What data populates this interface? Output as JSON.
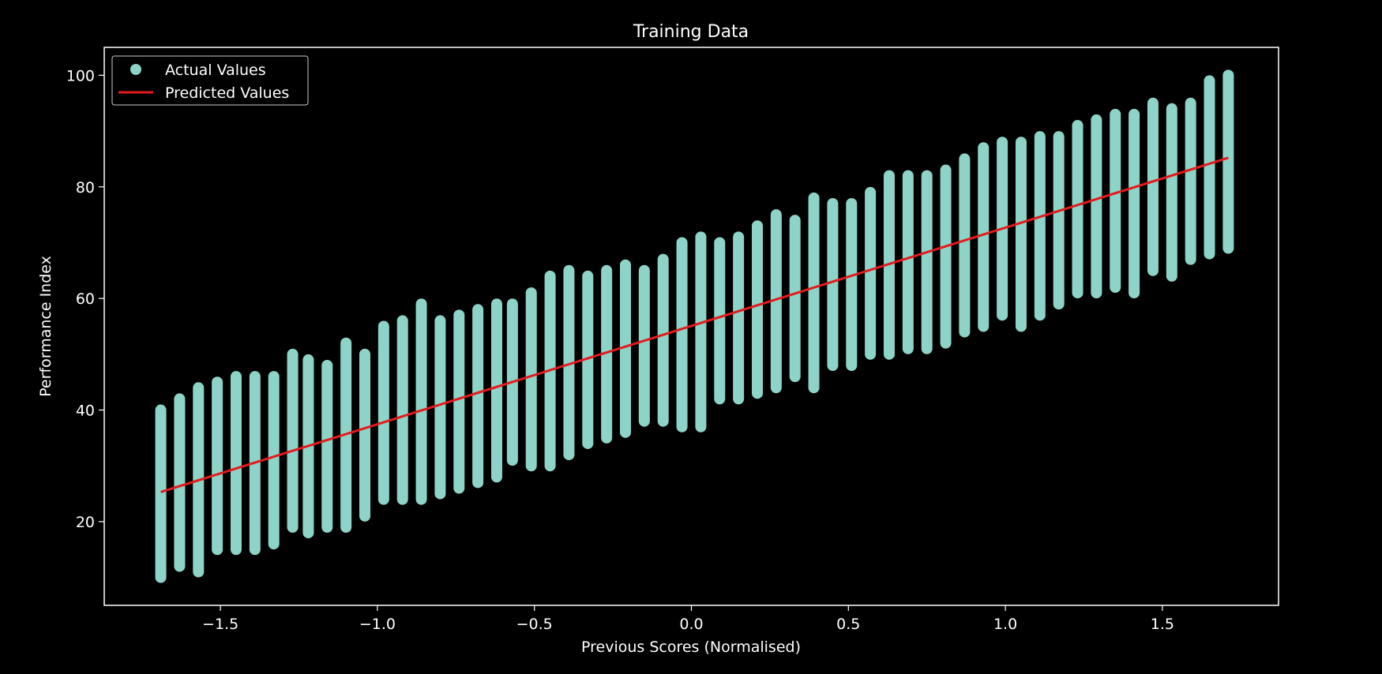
{
  "chart_data": {
    "type": "scatter",
    "title": "Training Data",
    "xlabel": "Previous Scores (Normalised)",
    "ylabel": "Performance Index",
    "xlim": [
      -1.87,
      1.87
    ],
    "ylim": [
      5,
      105
    ],
    "x_ticks": [
      -1.5,
      -1.0,
      -0.5,
      0.0,
      0.5,
      1.0,
      1.5
    ],
    "x_tick_labels": [
      "−1.5",
      "−1.0",
      "−0.5",
      "0.0",
      "0.5",
      "1.0",
      "1.5"
    ],
    "y_ticks": [
      20,
      40,
      60,
      80,
      100
    ],
    "y_tick_labels": [
      "20",
      "40",
      "60",
      "80",
      "100"
    ],
    "grid": false,
    "legend": {
      "position": "top-left",
      "entries": [
        {
          "label": "Actual Values",
          "marker": "circle",
          "color": "#8dd3c7"
        },
        {
          "label": "Predicted Values",
          "marker": "line",
          "color": "#e41a1c"
        }
      ]
    },
    "colors": {
      "background": "#000000",
      "axes": "#ffffff",
      "scatter": "#8dd3c7",
      "line": "#e41a1c"
    },
    "series": [
      {
        "name": "Actual Values",
        "kind": "scatter",
        "columns": [
          {
            "x": -1.69,
            "y": [
              10,
              40
            ]
          },
          {
            "x": -1.63,
            "y": [
              12,
              42
            ]
          },
          {
            "x": -1.57,
            "y": [
              11,
              44
            ]
          },
          {
            "x": -1.51,
            "y": [
              15,
              45
            ]
          },
          {
            "x": -1.45,
            "y": [
              15,
              46
            ]
          },
          {
            "x": -1.39,
            "y": [
              15,
              46
            ]
          },
          {
            "x": -1.33,
            "y": [
              16,
              46
            ]
          },
          {
            "x": -1.27,
            "y": [
              19,
              50
            ]
          },
          {
            "x": -1.22,
            "y": [
              18,
              49
            ]
          },
          {
            "x": -1.16,
            "y": [
              19,
              48
            ]
          },
          {
            "x": -1.1,
            "y": [
              19,
              52
            ]
          },
          {
            "x": -1.04,
            "y": [
              21,
              50
            ]
          },
          {
            "x": -0.98,
            "y": [
              24,
              55
            ]
          },
          {
            "x": -0.92,
            "y": [
              24,
              56
            ]
          },
          {
            "x": -0.86,
            "y": [
              24,
              59
            ]
          },
          {
            "x": -0.8,
            "y": [
              25,
              56
            ]
          },
          {
            "x": -0.74,
            "y": [
              26,
              57
            ]
          },
          {
            "x": -0.68,
            "y": [
              27,
              58
            ]
          },
          {
            "x": -0.62,
            "y": [
              28,
              59
            ]
          },
          {
            "x": -0.57,
            "y": [
              31,
              59
            ]
          },
          {
            "x": -0.51,
            "y": [
              30,
              61
            ]
          },
          {
            "x": -0.45,
            "y": [
              30,
              64
            ]
          },
          {
            "x": -0.39,
            "y": [
              32,
              65
            ]
          },
          {
            "x": -0.33,
            "y": [
              34,
              64
            ]
          },
          {
            "x": -0.27,
            "y": [
              35,
              65
            ]
          },
          {
            "x": -0.21,
            "y": [
              36,
              66
            ]
          },
          {
            "x": -0.15,
            "y": [
              38,
              65
            ]
          },
          {
            "x": -0.09,
            "y": [
              38,
              67
            ]
          },
          {
            "x": -0.03,
            "y": [
              37,
              70
            ]
          },
          {
            "x": 0.03,
            "y": [
              37,
              71
            ]
          },
          {
            "x": 0.09,
            "y": [
              42,
              70
            ]
          },
          {
            "x": 0.15,
            "y": [
              42,
              71
            ]
          },
          {
            "x": 0.21,
            "y": [
              43,
              73
            ]
          },
          {
            "x": 0.27,
            "y": [
              44,
              75
            ]
          },
          {
            "x": 0.33,
            "y": [
              46,
              74
            ]
          },
          {
            "x": 0.39,
            "y": [
              44,
              78
            ]
          },
          {
            "x": 0.45,
            "y": [
              48,
              77
            ]
          },
          {
            "x": 0.51,
            "y": [
              48,
              77
            ]
          },
          {
            "x": 0.57,
            "y": [
              50,
              79
            ]
          },
          {
            "x": 0.63,
            "y": [
              50,
              82
            ]
          },
          {
            "x": 0.69,
            "y": [
              51,
              82
            ]
          },
          {
            "x": 0.75,
            "y": [
              51,
              82
            ]
          },
          {
            "x": 0.81,
            "y": [
              52,
              83
            ]
          },
          {
            "x": 0.87,
            "y": [
              54,
              85
            ]
          },
          {
            "x": 0.93,
            "y": [
              55,
              87
            ]
          },
          {
            "x": 0.99,
            "y": [
              57,
              88
            ]
          },
          {
            "x": 1.05,
            "y": [
              55,
              88
            ]
          },
          {
            "x": 1.11,
            "y": [
              57,
              89
            ]
          },
          {
            "x": 1.17,
            "y": [
              59,
              89
            ]
          },
          {
            "x": 1.23,
            "y": [
              61,
              91
            ]
          },
          {
            "x": 1.29,
            "y": [
              61,
              92
            ]
          },
          {
            "x": 1.35,
            "y": [
              62,
              93
            ]
          },
          {
            "x": 1.41,
            "y": [
              61,
              93
            ]
          },
          {
            "x": 1.47,
            "y": [
              65,
              95
            ]
          },
          {
            "x": 1.53,
            "y": [
              64,
              94
            ]
          },
          {
            "x": 1.59,
            "y": [
              67,
              95
            ]
          },
          {
            "x": 1.65,
            "y": [
              68,
              99
            ]
          },
          {
            "x": 1.71,
            "y": [
              69,
              100
            ]
          }
        ]
      },
      {
        "name": "Predicted Values",
        "kind": "line",
        "x": [
          -1.69,
          1.71
        ],
        "y": [
          25.3,
          85.2
        ]
      }
    ]
  }
}
